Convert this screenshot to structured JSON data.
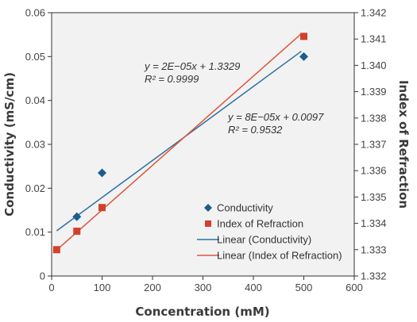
{
  "chart_data": {
    "type": "scatter",
    "xlabel": "Concentration (mM)",
    "ylabel": "Conductivity (mS/cm)",
    "y2label": "Index of Refraction",
    "xlim": [
      0,
      600
    ],
    "ylim": [
      0,
      0.06
    ],
    "y2lim": [
      1.332,
      1.342
    ],
    "x_ticks": [
      0,
      100,
      200,
      300,
      400,
      500,
      600
    ],
    "y_ticks": [
      "0",
      "0.01",
      "0.02",
      "0.03",
      "0.04",
      "0.05",
      "0.06"
    ],
    "y2_ticks": [
      "1.332",
      "1.333",
      "1.334",
      "1.335",
      "1.336",
      "1.337",
      "1.338",
      "1.339",
      "1.340",
      "1.341",
      "1.342"
    ],
    "grid": false,
    "plot_background": "#f2f2f2",
    "series": [
      {
        "name": "Conductivity",
        "axis": "left",
        "marker": "diamond",
        "color": "#1b5e8c",
        "x": [
          50,
          100,
          500
        ],
        "y": [
          0.0135,
          0.0235,
          0.05
        ]
      },
      {
        "name": "Index of Refraction",
        "axis": "right",
        "marker": "square",
        "color": "#d2412c",
        "x": [
          10,
          50,
          100,
          500
        ],
        "y": [
          1.333,
          1.3337,
          1.3346,
          1.3411
        ]
      }
    ],
    "trendlines": [
      {
        "name": "Linear (Conductivity)",
        "axis": "left",
        "color": "#2b6fa3",
        "x_range": [
          10,
          495
        ],
        "y_range": [
          0.0103,
          0.0512
        ],
        "equation": "y = 8E−05x + 0.0097",
        "r2": "R² = 0.9532"
      },
      {
        "name": "Linear (Index of Refraction)",
        "axis": "right",
        "color": "#e0543a",
        "x_range": [
          5,
          495
        ],
        "y_range": [
          1.3329,
          1.3412
        ],
        "equation": "y = 2E−05x + 1.3329",
        "r2": "R² = 0.9999"
      }
    ],
    "legend": {
      "placement": "bottom-right",
      "entries": [
        "Conductivity",
        "Index of Refraction",
        "Linear (Conductivity)",
        "Linear (Index of Refraction)"
      ]
    }
  }
}
